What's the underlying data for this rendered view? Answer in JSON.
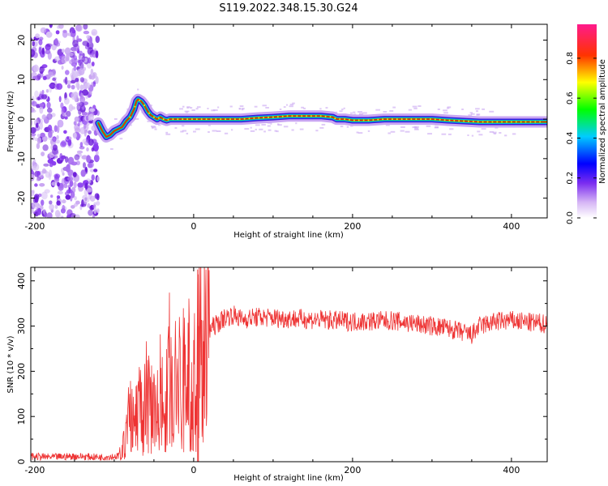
{
  "title": "S119.2022.348.15.30.G24",
  "chart_data": [
    {
      "type": "heatmap",
      "xlabel": "Height of straight line (km)",
      "ylabel": "Frequency (Hz)",
      "xlim": [
        -205,
        445
      ],
      "ylim": [
        -25,
        24
      ],
      "xticks": [
        -200,
        0,
        200,
        400
      ],
      "yticks": [
        -20,
        -10,
        0,
        10,
        20
      ],
      "colorbar": {
        "label": "Normalized spectral amplitude",
        "range": [
          0,
          0.97
        ],
        "ticks": [
          "0.0",
          "0.2",
          "0.4",
          "0.6",
          "0.8"
        ]
      },
      "ridge": {
        "x": [
          -120,
          -115,
          -110,
          -105,
          -100,
          -95,
          -90,
          -85,
          -80,
          -75,
          -72,
          -70,
          -66,
          -62,
          -58,
          -54,
          -50,
          -46,
          -42,
          -38,
          -34,
          -30,
          -20,
          0,
          20,
          40,
          60,
          80,
          100,
          120,
          140,
          160,
          175,
          180,
          190,
          200,
          220,
          240,
          260,
          280,
          300,
          320,
          340,
          360,
          380,
          400,
          420,
          445
        ],
        "y": [
          -1,
          -3,
          -4.5,
          -4,
          -3,
          -2.5,
          -2,
          -0.5,
          0.5,
          2.5,
          4.5,
          5,
          4.5,
          3.5,
          2,
          1,
          0.5,
          0,
          0.5,
          0,
          -0.3,
          0,
          0,
          0,
          0,
          0,
          0,
          0.3,
          0.5,
          0.8,
          0.8,
          0.8,
          0.5,
          0,
          0,
          -0.3,
          -0.3,
          0,
          0,
          0,
          0,
          -0.3,
          -0.5,
          -0.7,
          -0.7,
          -0.7,
          -0.7,
          -0.7
        ]
      },
      "noise_region_x": [
        -205,
        -120
      ]
    },
    {
      "type": "line",
      "xlabel": "Height of straight line (km)",
      "ylabel": "SNR (10 * v/v)",
      "xlim": [
        -205,
        445
      ],
      "ylim": [
        0,
        430
      ],
      "xticks": [
        -200,
        0,
        200,
        400
      ],
      "yticks": [
        0,
        100,
        200,
        300,
        400
      ],
      "series": [
        {
          "color": "#ee3333",
          "x": [
            -205,
            -180,
            -150,
            -120,
            -95,
            -90,
            -85,
            -80,
            -75,
            -70,
            -65,
            -60,
            -55,
            -50,
            -45,
            -40,
            -35,
            -30,
            -25,
            -20,
            -15,
            -10,
            -5,
            0,
            5,
            10,
            15,
            20,
            25,
            30,
            40,
            50,
            60,
            80,
            100,
            150,
            200,
            250,
            300,
            320,
            340,
            350,
            360,
            380,
            400,
            420,
            445
          ],
          "y": [
            12,
            10,
            12,
            10,
            12,
            25,
            60,
            120,
            70,
            140,
            90,
            160,
            110,
            180,
            100,
            200,
            120,
            210,
            140,
            200,
            150,
            230,
            180,
            160,
            230,
            260,
            280,
            290,
            300,
            305,
            320,
            325,
            315,
            320,
            318,
            315,
            310,
            312,
            300,
            295,
            285,
            280,
            300,
            310,
            312,
            308,
            305
          ],
          "spikes": [
            {
              "x": 5,
              "y": 425
            },
            {
              "x": 6,
              "y": 300
            }
          ]
        }
      ]
    }
  ]
}
